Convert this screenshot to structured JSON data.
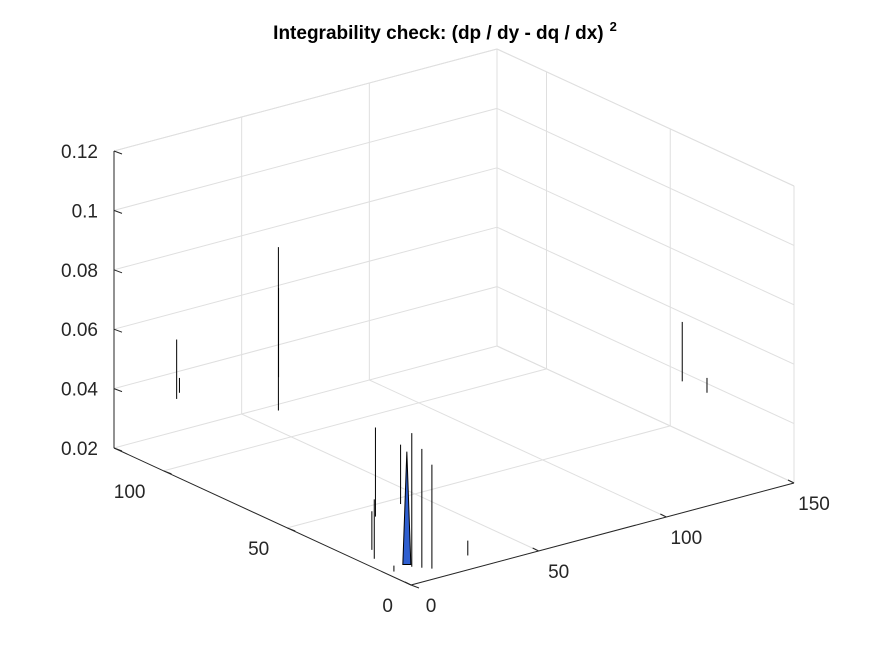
{
  "chart_data": {
    "type": "surface",
    "title": "Integrability check: (dp / dy - dq / dx)",
    "title_superscript": "2",
    "xlabel": "",
    "ylabel": "",
    "zlabel": "",
    "grid": true,
    "xlim": [
      0,
      150
    ],
    "ylim": [
      0,
      120
    ],
    "zlim": [
      0.02,
      0.12
    ],
    "x_ticks": [
      "0",
      "50",
      "100",
      "150"
    ],
    "y_ticks": [
      "0",
      "50",
      "100"
    ],
    "z_ticks": [
      "0.02",
      "0.04",
      "0.06",
      "0.08",
      "0.1",
      "0.12"
    ],
    "colors": {
      "axis": "#262626",
      "grid": "#dfdfdf",
      "surface_edge": "#000000",
      "surface_face": "#2f5fd0"
    },
    "spikes": [
      {
        "x": 10,
        "y": 10,
        "z": [
          0.02,
          0.065
        ]
      },
      {
        "x": 12,
        "y": 8,
        "z": [
          0.02,
          0.06
        ]
      },
      {
        "x": 14,
        "y": 6,
        "z": [
          0.02,
          0.055
        ]
      },
      {
        "x": 5,
        "y": 20,
        "z": [
          0.02,
          0.04
        ]
      },
      {
        "x": 6,
        "y": 22,
        "z": [
          0.022,
          0.035
        ]
      },
      {
        "x": 30,
        "y": 8,
        "z": [
          0.02,
          0.025
        ]
      },
      {
        "x": 3,
        "y": 10,
        "z": [
          0.02,
          0.022
        ]
      },
      {
        "x": 20,
        "y": 35,
        "z": [
          0.025,
          0.055
        ]
      },
      {
        "x": 25,
        "y": 30,
        "z": [
          0.03,
          0.05
        ]
      },
      {
        "x": 45,
        "y": 100,
        "z": [
          0.03,
          0.085
        ]
      },
      {
        "x": 47,
        "y": 102,
        "z": [
          0.04,
          0.07
        ]
      },
      {
        "x": 10,
        "y": 105,
        "z": [
          0.04,
          0.06
        ]
      },
      {
        "x": 14,
        "y": 108,
        "z": [
          0.04,
          0.045
        ]
      },
      {
        "x": 145,
        "y": 40,
        "z": [
          0.04,
          0.06
        ]
      },
      {
        "x": 145,
        "y": 30,
        "z": [
          0.04,
          0.045
        ]
      }
    ],
    "peak": {
      "x": 10,
      "y": 12,
      "z": [
        0.02,
        0.058
      ]
    }
  }
}
